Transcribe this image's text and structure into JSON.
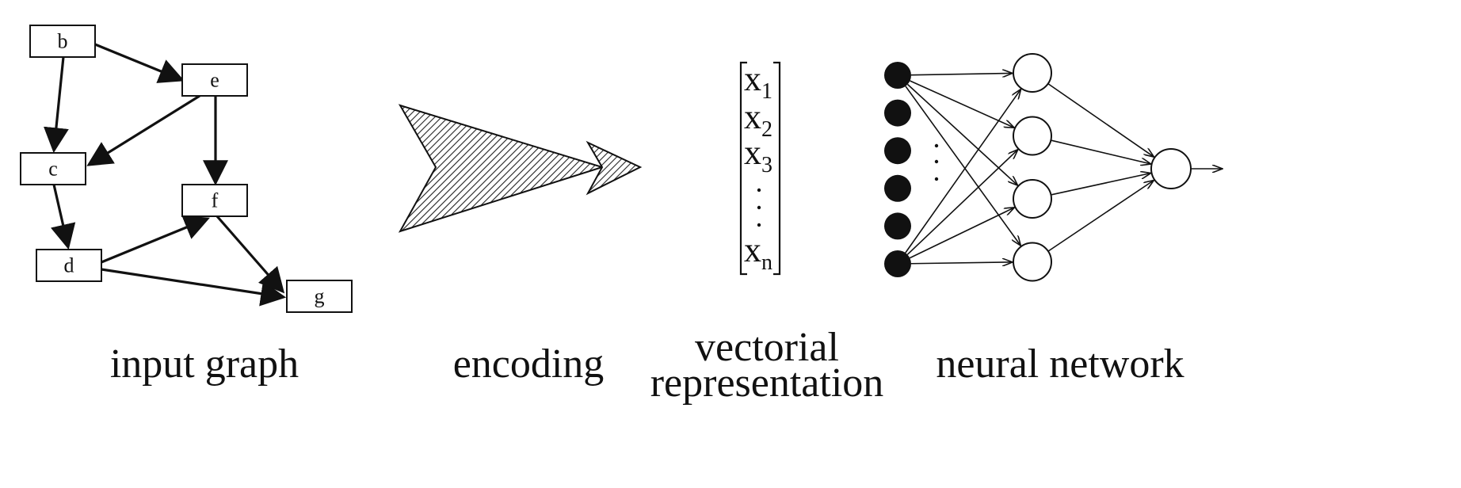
{
  "graph": {
    "nodes": [
      {
        "id": "b",
        "label": "b"
      },
      {
        "id": "e",
        "label": "e"
      },
      {
        "id": "c",
        "label": "c"
      },
      {
        "id": "f",
        "label": "f"
      },
      {
        "id": "d",
        "label": "d"
      },
      {
        "id": "g",
        "label": "g"
      }
    ],
    "edges": [
      [
        "b",
        "e"
      ],
      [
        "b",
        "c"
      ],
      [
        "e",
        "c"
      ],
      [
        "e",
        "f"
      ],
      [
        "c",
        "d"
      ],
      [
        "d",
        "f"
      ],
      [
        "d",
        "g"
      ],
      [
        "f",
        "g"
      ]
    ]
  },
  "vector": {
    "entries": [
      {
        "base": "x",
        "sub": "1"
      },
      {
        "base": "x",
        "sub": "2"
      },
      {
        "base": "x",
        "sub": "3"
      },
      {
        "base": "x",
        "sub": "n"
      }
    ]
  },
  "network": {
    "input_units": 6,
    "hidden_units": 4,
    "output_units": 1
  },
  "captions": {
    "input_graph": "input graph",
    "encoding": "encoding",
    "vectorial_line1": "vectorial",
    "vectorial_line2": "representation",
    "neural_network": "neural network"
  }
}
